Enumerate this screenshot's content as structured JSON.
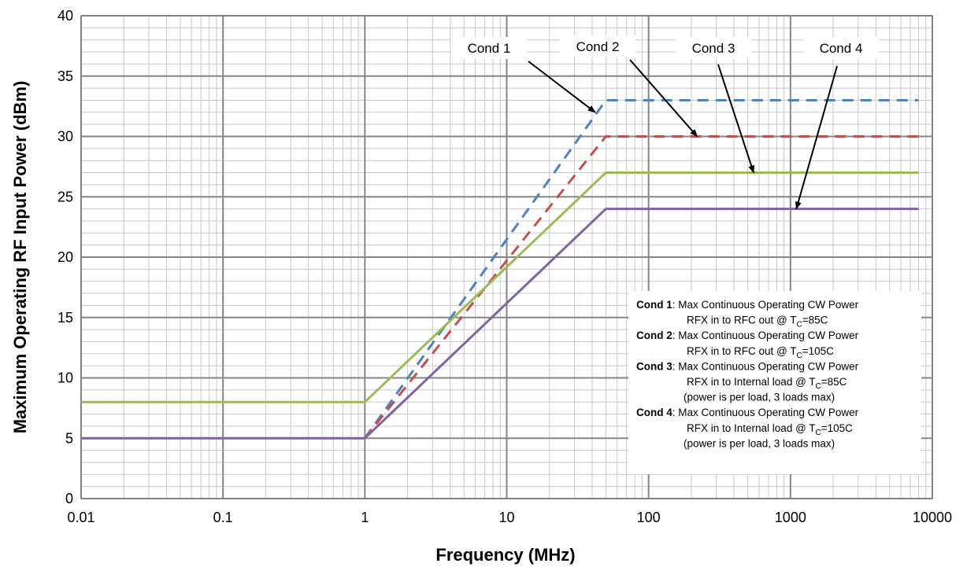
{
  "chart_data": {
    "type": "line",
    "title": "",
    "xlabel": "Frequency (MHz)",
    "ylabel": "Maximum Operating RF Input Power (dBm)",
    "xscale": "log",
    "xlim": [
      0.01,
      10000
    ],
    "ylim": [
      0,
      40
    ],
    "x_tick_labels": [
      "0.01",
      "0.1",
      "1",
      "10",
      "100",
      "1000",
      "10000"
    ],
    "y_tick_labels": [
      "0",
      "5",
      "10",
      "15",
      "20",
      "25",
      "30",
      "35",
      "40"
    ],
    "x_ticks": [
      0.01,
      0.1,
      1,
      10,
      100,
      1000,
      10000
    ],
    "y_ticks": [
      0,
      5,
      10,
      15,
      20,
      25,
      30,
      35,
      40
    ],
    "grid": true,
    "legend_position": "lower-right",
    "series": [
      {
        "name": "Cond 1",
        "color": "#4F81BD",
        "dash": true,
        "x": [
          1,
          50,
          8000
        ],
        "y": [
          5,
          33,
          33
        ]
      },
      {
        "name": "Cond 2",
        "color": "#C0504D",
        "dash": true,
        "x": [
          1,
          50,
          8000
        ],
        "y": [
          5,
          30,
          30
        ]
      },
      {
        "name": "Cond 3",
        "color": "#9BBB59",
        "dash": false,
        "x": [
          0.01,
          1,
          50,
          8000
        ],
        "y": [
          8,
          8,
          27,
          27
        ]
      },
      {
        "name": "Cond 4",
        "color": "#8064A2",
        "dash": false,
        "x": [
          0.01,
          1,
          50,
          8000
        ],
        "y": [
          5,
          5,
          24,
          24
        ]
      }
    ],
    "annotations": [
      {
        "label": "Cond 1",
        "arrow_to": [
          42,
          32
        ]
      },
      {
        "label": "Cond 2",
        "arrow_to": [
          220,
          30
        ]
      },
      {
        "label": "Cond 3",
        "arrow_to": [
          550,
          27
        ]
      },
      {
        "label": "Cond 4",
        "arrow_to": [
          1100,
          24
        ]
      }
    ],
    "legend_box": [
      {
        "bold": "Cond 1",
        "line1": ": Max Continuous Operating CW Power",
        "line2_pre": "RFX in to RFC out @ T",
        "line2_sub": "C",
        "line2_post": "=85C"
      },
      {
        "bold": "Cond 2",
        "line1": ": Max Continuous Operating CW Power",
        "line2_pre": "RFX in to RFC out @ T",
        "line2_sub": "C",
        "line2_post": "=105C"
      },
      {
        "bold": "Cond 3",
        "line1": ": Max Continuous Operating CW Power",
        "line2_pre": "RFX in to Internal load @ T",
        "line2_sub": "C",
        "line2_post": "=85C",
        "line3": "(power is per load, 3 loads max)"
      },
      {
        "bold": "Cond 4",
        "line1": ": Max Continuous Operating CW Power",
        "line2_pre": "RFX in to Internal load @ T",
        "line2_sub": "C",
        "line2_post": "=105C",
        "line3": "(power is per load, 3 loads max)"
      }
    ]
  }
}
